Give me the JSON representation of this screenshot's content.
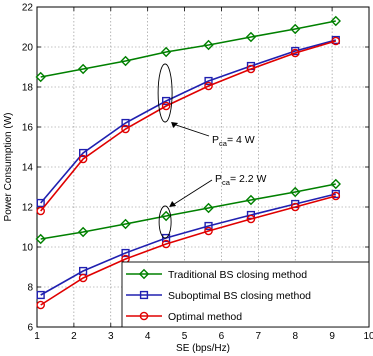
{
  "chart_data": {
    "type": "line",
    "title": "",
    "xlabel": "SE (bps/Hz)",
    "ylabel": "Power Consumption (W)",
    "xlim": [
      1,
      10
    ],
    "ylim": [
      6,
      22
    ],
    "x_ticks": [
      1,
      2,
      3,
      4,
      5,
      6,
      7,
      8,
      9,
      10
    ],
    "y_ticks": [
      6,
      8,
      10,
      12,
      14,
      16,
      18,
      20,
      22
    ],
    "grid": true,
    "legend_position": "bottom-right",
    "series": [
      {
        "name": "Traditional BS closing method",
        "group": "P_ca = 4 W",
        "color": "#008000",
        "marker": "diamond",
        "x": [
          1.1,
          2.25,
          3.4,
          4.5,
          5.65,
          6.8,
          8.0,
          9.1
        ],
        "y": [
          18.5,
          18.9,
          19.3,
          19.75,
          20.1,
          20.5,
          20.9,
          21.3
        ]
      },
      {
        "name": "Suboptimal BS closing method",
        "group": "P_ca = 4 W",
        "color": "#2020b0",
        "marker": "square",
        "x": [
          1.1,
          2.25,
          3.4,
          4.5,
          5.65,
          6.8,
          8.0,
          9.1
        ],
        "y": [
          12.2,
          14.7,
          16.2,
          17.3,
          18.3,
          19.05,
          19.8,
          20.35
        ]
      },
      {
        "name": "Optimal method",
        "group": "P_ca = 4 W",
        "color": "#e00000",
        "marker": "circle",
        "x": [
          1.1,
          2.25,
          3.4,
          4.5,
          5.65,
          6.8,
          8.0,
          9.1
        ],
        "y": [
          11.8,
          14.4,
          15.9,
          17.05,
          18.05,
          18.9,
          19.7,
          20.3
        ]
      },
      {
        "name": "Traditional BS closing method",
        "group": "P_ca = 2.2 W",
        "color": "#008000",
        "marker": "diamond",
        "x": [
          1.1,
          2.25,
          3.4,
          4.5,
          5.65,
          6.8,
          8.0,
          9.1
        ],
        "y": [
          10.4,
          10.75,
          11.15,
          11.55,
          11.95,
          12.35,
          12.75,
          13.15
        ]
      },
      {
        "name": "Suboptimal BS closing method",
        "group": "P_ca = 2.2 W",
        "color": "#2020b0",
        "marker": "square",
        "x": [
          1.1,
          2.25,
          3.4,
          4.5,
          5.65,
          6.8,
          8.0,
          9.1
        ],
        "y": [
          7.6,
          8.8,
          9.7,
          10.45,
          11.05,
          11.6,
          12.15,
          12.65
        ]
      },
      {
        "name": "Optimal method",
        "group": "P_ca = 2.2 W",
        "color": "#e00000",
        "marker": "circle",
        "x": [
          1.1,
          2.25,
          3.4,
          4.5,
          5.65,
          6.8,
          8.0,
          9.1
        ],
        "y": [
          7.1,
          8.45,
          9.4,
          10.15,
          10.8,
          11.4,
          12.0,
          12.55
        ]
      }
    ],
    "legend": [
      {
        "label": "Traditional BS closing method",
        "color": "#008000",
        "marker": "diamond"
      },
      {
        "label": "Suboptimal BS closing method",
        "color": "#2020b0",
        "marker": "square"
      },
      {
        "label": "Optimal method",
        "color": "#e00000",
        "marker": "circle"
      }
    ],
    "annotations": [
      {
        "prefix": "P",
        "sub": "ca",
        "suffix": "= 4 W",
        "points_to_x": 4.5,
        "points_to_y": 17.7
      },
      {
        "prefix": "P",
        "sub": "ca",
        "suffix": "= 2.2 W",
        "points_to_x": 4.5,
        "points_to_y": 11.3
      }
    ]
  }
}
